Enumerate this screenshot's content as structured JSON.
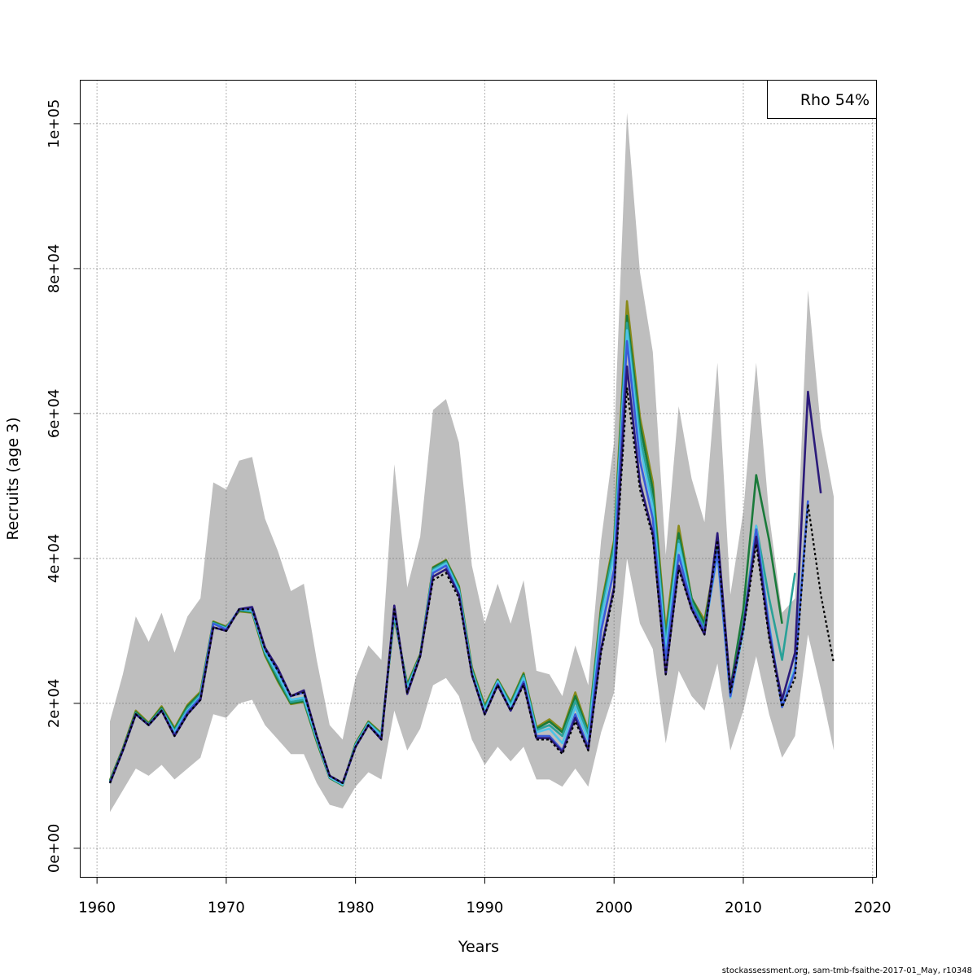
{
  "chart_data": {
    "type": "line",
    "title": "",
    "xlabel": "Years",
    "ylabel": "Recruits (age 3)",
    "xlim": [
      1958.7,
      2020.3
    ],
    "ylim": [
      -4000,
      106000
    ],
    "x_ticks": [
      1960,
      1970,
      1980,
      1990,
      2000,
      2010,
      2020
    ],
    "x_tick_labels": [
      "1960",
      "1970",
      "1980",
      "1990",
      "2000",
      "2010",
      "2020"
    ],
    "y_ticks": [
      0,
      20000,
      40000,
      60000,
      80000,
      100000
    ],
    "y_tick_labels": [
      "0e+00",
      "2e+04",
      "4e+04",
      "6e+04",
      "8e+04",
      "1e+05"
    ],
    "grid": true,
    "legend": {
      "position": "top-right",
      "text": "Rho 54%"
    },
    "footer": "stockassessment.org, sam-tmb-fsaithe-2017-01_May, r10348",
    "band_color": "#bebebe",
    "years": [
      1961,
      1962,
      1963,
      1964,
      1965,
      1966,
      1967,
      1968,
      1969,
      1970,
      1971,
      1972,
      1973,
      1974,
      1975,
      1976,
      1977,
      1978,
      1979,
      1980,
      1981,
      1982,
      1983,
      1984,
      1985,
      1986,
      1987,
      1988,
      1989,
      1990,
      1991,
      1992,
      1993,
      1994,
      1995,
      1996,
      1997,
      1998,
      1999,
      2000,
      2001,
      2002,
      2003,
      2004,
      2005,
      2006,
      2007,
      2008,
      2009,
      2010,
      2011,
      2012,
      2013,
      2014,
      2015,
      2016,
      2017
    ],
    "upper": [
      17500,
      24000,
      32000,
      28500,
      32500,
      27000,
      32000,
      34500,
      50500,
      49500,
      53500,
      54000,
      45500,
      41000,
      35500,
      36500,
      26000,
      17000,
      15000,
      23500,
      28000,
      26000,
      53000,
      36000,
      43000,
      60500,
      62000,
      56000,
      39000,
      31000,
      36500,
      31000,
      37000,
      24500,
      24000,
      21000,
      28000,
      22500,
      42500,
      56000,
      101500,
      79500,
      68500,
      40500,
      61000,
      51000,
      45000,
      67000,
      35000,
      46500,
      67000,
      46000,
      32500,
      34500,
      77000,
      58000,
      48500
    ],
    "lower": [
      5000,
      8000,
      11000,
      10000,
      11500,
      9500,
      11000,
      12500,
      18500,
      18000,
      20000,
      20500,
      17000,
      15000,
      13000,
      13000,
      9000,
      6000,
      5500,
      8500,
      10500,
      9500,
      19000,
      13500,
      16500,
      22500,
      23500,
      21000,
      15000,
      11500,
      14000,
      12000,
      14000,
      9500,
      9500,
      8500,
      11000,
      8500,
      16000,
      21500,
      40000,
      31000,
      27500,
      14500,
      24500,
      21000,
      19000,
      25500,
      13500,
      19000,
      26500,
      18500,
      12500,
      15500,
      29500,
      22000,
      13500
    ],
    "series": [
      {
        "name": "",
        "color": "#000000",
        "dashed": true,
        "start": 1961,
        "values": [
          9000,
          13500,
          18500,
          17000,
          19000,
          15500,
          18500,
          20500,
          30500,
          30000,
          33000,
          33000,
          27500,
          24500,
          21000,
          21500,
          15500,
          10000,
          9000,
          14000,
          17000,
          15000,
          33000,
          21500,
          26500,
          37000,
          38000,
          34500,
          24000,
          18500,
          22500,
          19000,
          22500,
          15000,
          15000,
          13000,
          17500,
          13500,
          27000,
          35500,
          63500,
          49500,
          43000,
          24000,
          38500,
          33000,
          29500,
          42500,
          21500,
          30000,
          42000,
          29000,
          19500,
          23500,
          47500,
          35000,
          25500
        ]
      },
      {
        "name": "",
        "color": "#2b1a7a",
        "dashed": false,
        "start": 1961,
        "values": [
          9000,
          13500,
          18500,
          17000,
          19000,
          15500,
          18500,
          20500,
          30500,
          30000,
          33000,
          33300,
          27700,
          24800,
          21000,
          21800,
          15500,
          10000,
          9000,
          14000,
          17000,
          15000,
          33500,
          21300,
          26500,
          37500,
          38500,
          35000,
          24000,
          18500,
          22500,
          19000,
          22700,
          15200,
          15200,
          13300,
          18000,
          13600,
          27500,
          36000,
          66500,
          50500,
          43500,
          24000,
          39000,
          33000,
          29500,
          43500,
          22000,
          30500,
          43000,
          29500,
          20500,
          27000,
          63000,
          49000
        ]
      },
      {
        "name": "",
        "color": "#3b5bd9",
        "dashed": false,
        "start": 1961,
        "values": [
          9000,
          13500,
          18500,
          17000,
          19000,
          15700,
          18800,
          20800,
          31000,
          30200,
          33000,
          33000,
          27500,
          24500,
          21000,
          21500,
          15500,
          10000,
          9000,
          14000,
          17000,
          15200,
          33000,
          21500,
          26500,
          38000,
          39000,
          35000,
          24000,
          18500,
          22700,
          19000,
          23000,
          15500,
          15500,
          13500,
          18500,
          14000,
          30000,
          38500,
          70000,
          53500,
          45500,
          26000,
          40500,
          33500,
          30000,
          41000,
          21000,
          30500,
          44000,
          30500,
          19500,
          24500,
          48000
        ]
      },
      {
        "name": "",
        "color": "#4fc3e8",
        "dashed": false,
        "start": 1961,
        "values": [
          9000,
          13500,
          18500,
          17000,
          19000,
          16000,
          19000,
          21000,
          31000,
          30300,
          33000,
          32800,
          27200,
          24000,
          20500,
          20800,
          15200,
          9800,
          8800,
          14200,
          17200,
          15500,
          32500,
          22000,
          26500,
          38300,
          39300,
          35500,
          24300,
          19000,
          23000,
          19500,
          23500,
          16000,
          16500,
          14500,
          19500,
          15000,
          31500,
          40500,
          71500,
          55500,
          47000,
          27500,
          42000,
          33500,
          29800,
          40500,
          20800,
          30000,
          44500,
          31000,
          19500,
          25000,
          48000
        ]
      },
      {
        "name": "",
        "color": "#2aa198",
        "dashed": false,
        "start": 1961,
        "values": [
          9200,
          13600,
          18600,
          17100,
          19200,
          16200,
          19300,
          21200,
          31100,
          30400,
          32900,
          32700,
          27000,
          23600,
          20200,
          20500,
          15000,
          9800,
          8800,
          14300,
          17300,
          15700,
          32300,
          22300,
          26600,
          38500,
          39500,
          35800,
          24600,
          19300,
          23100,
          19800,
          23800,
          16300,
          17000,
          15500,
          20300,
          15800,
          32500,
          41500,
          72500,
          57000,
          48000,
          28500,
          42500,
          34000,
          30500,
          41000,
          21500,
          31000,
          44500,
          34500,
          26000,
          38000
        ]
      },
      {
        "name": "",
        "color": "#1a7a3a",
        "dashed": false,
        "start": 1961,
        "values": [
          9300,
          13700,
          18800,
          17200,
          19400,
          16400,
          19600,
          21400,
          31200,
          30500,
          32800,
          32600,
          26800,
          23200,
          20000,
          20300,
          14800,
          9700,
          8700,
          14400,
          17400,
          15800,
          32000,
          22500,
          26700,
          38700,
          39700,
          36000,
          24800,
          19500,
          23200,
          20000,
          24000,
          16500,
          17500,
          16000,
          21000,
          16000,
          33000,
          42000,
          73500,
          58500,
          49500,
          29000,
          43500,
          34500,
          31000,
          41500,
          22000,
          33000,
          51500,
          42500,
          31000
        ]
      },
      {
        "name": "",
        "color": "#8a8a1a",
        "dashed": false,
        "start": 1961,
        "values": [
          9400,
          13800,
          19000,
          17300,
          19600,
          16600,
          19800,
          21600,
          31300,
          30600,
          32700,
          32500,
          26600,
          23000,
          19900,
          20200,
          14700,
          9700,
          8700,
          14500,
          17500,
          15900,
          31800,
          22700,
          26800,
          38800,
          39800,
          36200,
          25000,
          19700,
          23300,
          20200,
          24200,
          16700,
          17800,
          16300,
          21500,
          16300,
          33500,
          42500,
          75500,
          59500,
          50500,
          30000,
          44500,
          34500,
          31500,
          41500
        ]
      }
    ]
  }
}
